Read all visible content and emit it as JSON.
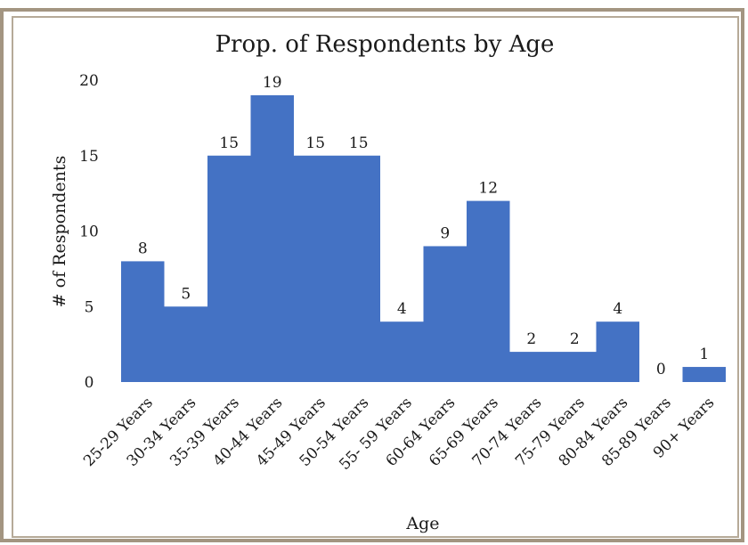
{
  "chart_data": {
    "type": "bar",
    "title": "Prop. of Respondents by Age",
    "xlabel": "Age",
    "ylabel": "# of Respondents",
    "ylim": [
      0,
      20
    ],
    "yticks": [
      "0",
      "5",
      "10",
      "15",
      "20"
    ],
    "grid": false,
    "legend": "none",
    "bar_color": "#4472c4",
    "categories": [
      "25-29 Years",
      "30-34 Years",
      "35-39 Years",
      "40-44 Years",
      "45-49 Years",
      "50-54 Years",
      "55- 59 Years",
      "60-64 Years",
      "65-69 Years",
      "70-74 Years",
      "75-79 Years",
      "80-84 Years",
      "85-89 Years",
      "90+ Years"
    ],
    "values": [
      8,
      5,
      15,
      19,
      15,
      15,
      4,
      9,
      12,
      2,
      2,
      4,
      0,
      1
    ]
  }
}
